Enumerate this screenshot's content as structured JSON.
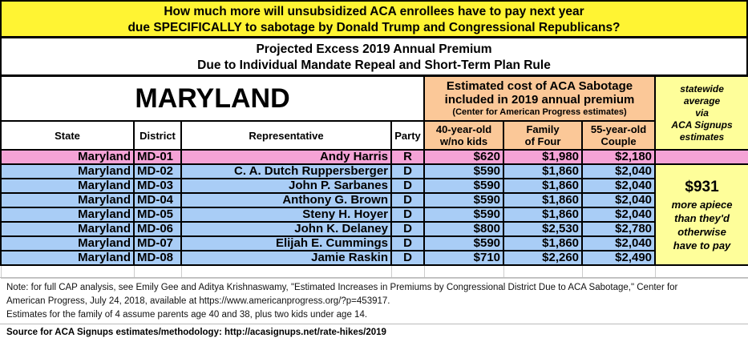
{
  "title": {
    "line1": "How much more will unsubsidized ACA enrollees have to pay next year",
    "line2": "due SPECIFICALLY to sabotage by Donald Trump and Congressional Republicans?"
  },
  "subtitle": {
    "line1": "Projected Excess 2019 Annual Premium",
    "line2": "Due to Individual Mandate Repeal and Short-Term Plan Rule"
  },
  "state_name": "MARYLAND",
  "cost_header": {
    "line1": "Estimated cost of ACA Sabotage",
    "line2": "included in 2019 annual premium",
    "line3": "(Center for American Progress estimates)"
  },
  "side_header": {
    "line1": "statewide",
    "line2": "average",
    "line3": "via",
    "line4": "ACA Signups",
    "line5": "estimates"
  },
  "columns": {
    "state": "State",
    "district": "District",
    "representative": "Representative",
    "party": "Party",
    "single": [
      "40-year-old",
      "w/no kids"
    ],
    "family": [
      "Family",
      "of Four"
    ],
    "couple": [
      "55-year-old",
      "Couple"
    ]
  },
  "colors": {
    "republican": "#f5a3d6",
    "democrat": "#a9cdf6",
    "title_bg": "#fff433",
    "cost_bg": "#fbc898",
    "side_bg": "#fefe9a"
  },
  "rows": [
    {
      "state": "Maryland",
      "district": "MD-01",
      "rep": "Andy Harris",
      "party": "R",
      "single": "$620",
      "family": "$1,980",
      "couple": "$2,180"
    },
    {
      "state": "Maryland",
      "district": "MD-02",
      "rep": "C. A. Dutch Ruppersberger",
      "party": "D",
      "single": "$590",
      "family": "$1,860",
      "couple": "$2,040"
    },
    {
      "state": "Maryland",
      "district": "MD-03",
      "rep": "John P. Sarbanes",
      "party": "D",
      "single": "$590",
      "family": "$1,860",
      "couple": "$2,040"
    },
    {
      "state": "Maryland",
      "district": "MD-04",
      "rep": "Anthony G. Brown",
      "party": "D",
      "single": "$590",
      "family": "$1,860",
      "couple": "$2,040"
    },
    {
      "state": "Maryland",
      "district": "MD-05",
      "rep": "Steny H. Hoyer",
      "party": "D",
      "single": "$590",
      "family": "$1,860",
      "couple": "$2,040"
    },
    {
      "state": "Maryland",
      "district": "MD-06",
      "rep": "John K. Delaney",
      "party": "D",
      "single": "$800",
      "family": "$2,530",
      "couple": "$2,780"
    },
    {
      "state": "Maryland",
      "district": "MD-07",
      "rep": "Elijah E. Cummings",
      "party": "D",
      "single": "$590",
      "family": "$1,860",
      "couple": "$2,040"
    },
    {
      "state": "Maryland",
      "district": "MD-08",
      "rep": "Jamie Raskin",
      "party": "D",
      "single": "$710",
      "family": "$2,260",
      "couple": "$2,490"
    }
  ],
  "average": {
    "amount": "$931",
    "line1": "more apiece",
    "line2": "than they'd",
    "line3": "otherwise",
    "line4": "have to pay"
  },
  "note": {
    "line1": "Note: for full CAP analysis, see Emily Gee and Aditya Krishnaswamy, \"Estimated Increases in Premiums by Congressional District Due to ACA Sabotage,\" Center for",
    "line2": "American Progress, July 24, 2018, available at https://www.americanprogress.org/?p=453917.",
    "line3": "Estimates for the family of 4 assume parents age 40 and 38, plus two kids under age 14."
  },
  "source": "Source for ACA Signups estimates/methodology: http://acasignups.net/rate-hikes/2019"
}
